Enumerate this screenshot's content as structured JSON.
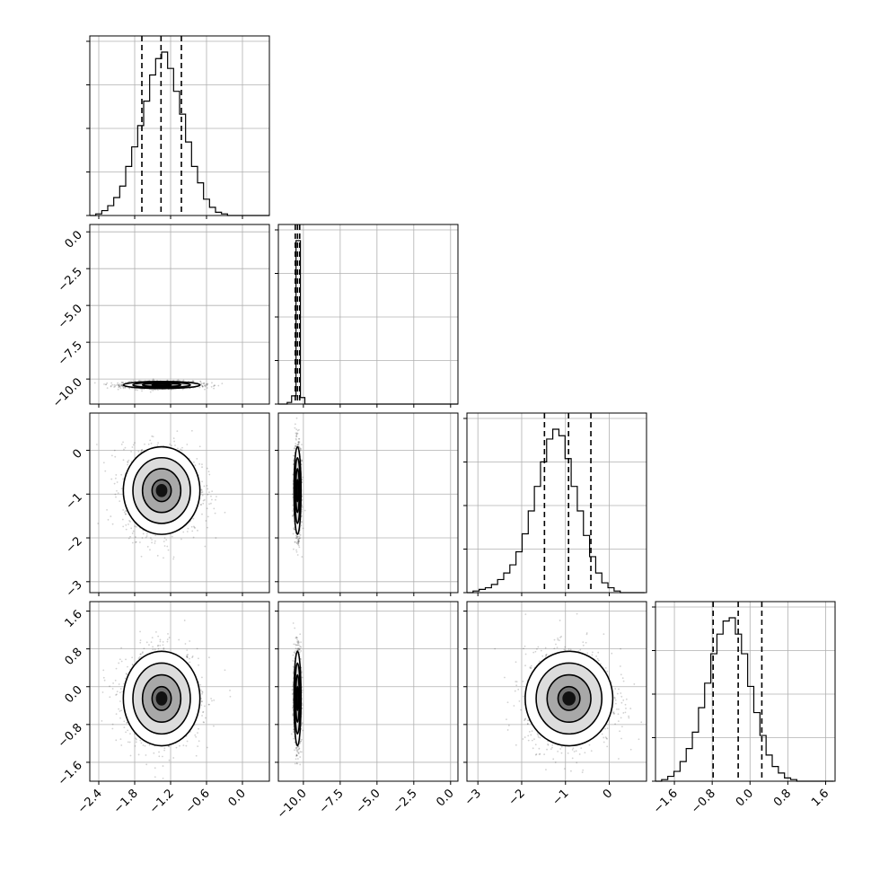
{
  "chart_data": {
    "type": "corner",
    "n_params": 4,
    "grid": true,
    "params": [
      {
        "index": 0,
        "range": [
          -2.55,
          0.45
        ],
        "ticks": [
          -2.4,
          -1.8,
          -1.2,
          -0.6,
          0.0
        ],
        "tick_labels": [
          "−2.4",
          "−1.8",
          "−1.2",
          "−0.6",
          "0.0"
        ],
        "mean": -1.35,
        "std": 0.32,
        "quantiles": [
          -1.68,
          -1.36,
          -1.02
        ]
      },
      {
        "index": 1,
        "range": [
          -11.7,
          0.5
        ],
        "ticks": [
          -10.0,
          -7.5,
          -5.0,
          -2.5,
          0.0
        ],
        "tick_labels": [
          "−10.0",
          "−7.5",
          "−5.0",
          "−2.5",
          "0.0"
        ],
        "mean": -10.4,
        "std": 0.12,
        "quantiles": [
          -10.55,
          -10.4,
          -10.25
        ]
      },
      {
        "index": 2,
        "range": [
          -3.25,
          0.85
        ],
        "ticks": [
          -3,
          -2,
          -1,
          0
        ],
        "tick_labels": [
          "−3",
          "−2",
          "−1",
          "0"
        ],
        "mean": -0.92,
        "std": 0.5,
        "quantiles": [
          -1.48,
          -0.93,
          -0.42
        ]
      },
      {
        "index": 3,
        "range": [
          -2.0,
          1.8
        ],
        "ticks": [
          -1.6,
          -0.8,
          0.0,
          0.8,
          1.6
        ],
        "tick_labels": [
          "−1.6",
          "−0.8",
          "0.0",
          "0.8",
          "1.6"
        ],
        "mean": -0.25,
        "std": 0.5,
        "quantiles": [
          -0.78,
          -0.25,
          0.25
        ]
      }
    ],
    "diagonal": [
      {
        "param": 0,
        "type": "step-histogram",
        "bins_edges_from": -2.55,
        "bin_width": 0.1,
        "counts": [
          0.0,
          0.01,
          0.03,
          0.06,
          0.11,
          0.18,
          0.3,
          0.42,
          0.55,
          0.7,
          0.86,
          0.96,
          1.0,
          0.9,
          0.76,
          0.62,
          0.45,
          0.3,
          0.2,
          0.1,
          0.05,
          0.02,
          0.01,
          0.0,
          0.0,
          0.0,
          0.0,
          0.0,
          0.0,
          0.0
        ]
      },
      {
        "param": 1,
        "type": "step-histogram",
        "bins_edges_from": -11.7,
        "bin_width": 0.3,
        "counts": [
          0.0,
          0.0,
          0.01,
          0.05,
          1.0,
          0.04,
          0.0,
          0.0,
          0.0,
          0.0,
          0.0,
          0.0,
          0.0,
          0.0,
          0.0,
          0.0,
          0.0,
          0.0,
          0.0,
          0.0,
          0.0,
          0.0,
          0.0,
          0.0,
          0.0,
          0.0,
          0.0,
          0.0,
          0.0,
          0.0,
          0.0,
          0.0,
          0.0,
          0.0,
          0.0,
          0.0,
          0.0,
          0.0,
          0.0,
          0.0,
          0.0
        ]
      },
      {
        "param": 2,
        "type": "step-histogram",
        "bins_edges_from": -3.25,
        "bin_width": 0.14,
        "counts": [
          0.0,
          0.01,
          0.02,
          0.03,
          0.05,
          0.08,
          0.12,
          0.17,
          0.25,
          0.36,
          0.5,
          0.65,
          0.8,
          0.94,
          1.0,
          0.96,
          0.82,
          0.65,
          0.5,
          0.35,
          0.22,
          0.12,
          0.06,
          0.03,
          0.01,
          0.0,
          0.0,
          0.0,
          0.0
        ]
      },
      {
        "param": 3,
        "type": "step-histogram",
        "bins_edges_from": -2.0,
        "bin_width": 0.13,
        "counts": [
          0.0,
          0.01,
          0.03,
          0.06,
          0.12,
          0.2,
          0.3,
          0.45,
          0.6,
          0.78,
          0.9,
          0.98,
          1.0,
          0.9,
          0.78,
          0.58,
          0.42,
          0.28,
          0.16,
          0.09,
          0.05,
          0.02,
          0.01,
          0.0,
          0.0,
          0.0,
          0.0,
          0.0,
          0.0
        ]
      }
    ],
    "off_diagonal": [
      {
        "x_param": 0,
        "y_param": 1,
        "correlation": 0.0
      },
      {
        "x_param": 0,
        "y_param": 2,
        "correlation": 0.0
      },
      {
        "x_param": 1,
        "y_param": 2,
        "correlation": 0.0
      },
      {
        "x_param": 0,
        "y_param": 3,
        "correlation": 0.0
      },
      {
        "x_param": 1,
        "y_param": 3,
        "correlation": 0.0
      },
      {
        "x_param": 2,
        "y_param": 3,
        "correlation": 0.0
      }
    ],
    "contour_sigma_levels": [
      0.5,
      1.0,
      1.5,
      2.0
    ]
  }
}
